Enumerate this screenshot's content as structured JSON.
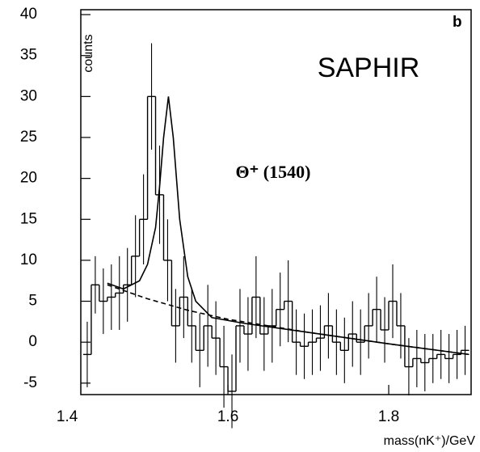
{
  "chart_data": {
    "type": "histogram",
    "title": "SAPHIR",
    "panel_label": "b",
    "annotation": "Θ⁺ (1540)",
    "x_label": "mass(nK⁺)/GeV",
    "y_label": "counts",
    "bins": [
      1.42,
      1.43,
      1.44,
      1.45,
      1.46,
      1.47,
      1.48,
      1.49,
      1.5,
      1.51,
      1.52,
      1.53,
      1.54,
      1.55,
      1.56,
      1.57,
      1.58,
      1.59,
      1.6,
      1.61,
      1.62,
      1.63,
      1.64,
      1.65,
      1.66,
      1.67,
      1.68,
      1.69,
      1.7,
      1.71,
      1.72,
      1.73,
      1.74,
      1.75,
      1.76,
      1.77,
      1.78,
      1.79,
      1.8,
      1.81,
      1.82,
      1.83,
      1.84,
      1.85,
      1.86,
      1.87,
      1.88,
      1.89,
      1.9
    ],
    "values": [
      -1.5,
      7,
      5,
      5.5,
      6,
      7,
      10.5,
      15,
      30,
      18,
      10,
      2,
      5.5,
      2,
      -1,
      2,
      0.5,
      -3,
      -6,
      2,
      1,
      5.5,
      1,
      2,
      4,
      5,
      0,
      -0.5,
      0,
      0.5,
      2,
      0,
      -1,
      1,
      0,
      2,
      4,
      1.5,
      5,
      2,
      -3,
      -2,
      -2.5,
      -2,
      -1.5,
      -2,
      -1.5,
      -1
    ],
    "errors": [
      4,
      3.5,
      4,
      4,
      4.5,
      4.5,
      5,
      5.5,
      6.5,
      6,
      5,
      4.5,
      5,
      4.5,
      4.5,
      5,
      4.5,
      5,
      4.5,
      4.5,
      4.5,
      5,
      4.5,
      4.5,
      4.5,
      5,
      4,
      4,
      4,
      4,
      4,
      4,
      4,
      4,
      4,
      4,
      4,
      4,
      4.5,
      4,
      3.5,
      3.5,
      3.5,
      3,
      3,
      3,
      3,
      3
    ],
    "color": "#000000",
    "fit": {
      "x": [
        1.45,
        1.47,
        1.49,
        1.5,
        1.51,
        1.515,
        1.52,
        1.526,
        1.532,
        1.54,
        1.55,
        1.56,
        1.58,
        1.62,
        1.7,
        1.8,
        1.9
      ],
      "values": [
        7.2,
        6.5,
        7.5,
        9.5,
        14,
        19,
        25,
        30,
        25,
        15,
        8,
        5,
        3,
        2.3,
        1.2,
        -0.2,
        -1.5
      ],
      "style": "solid"
    },
    "background": {
      "x": [
        1.45,
        1.5,
        1.55,
        1.6,
        1.7,
        1.8,
        1.9
      ],
      "values": [
        7,
        5.3,
        3.9,
        2.8,
        1.2,
        -0.2,
        -1.5
      ],
      "style": "dashed"
    },
    "xlim": [
      1.417,
      1.9025
    ],
    "ylim": [
      -6.4,
      40.6
    ],
    "xticks": [
      1.4,
      1.6,
      1.8
    ],
    "yticks": [
      -5,
      0,
      5,
      10,
      15,
      20,
      25,
      30,
      35,
      40
    ]
  }
}
